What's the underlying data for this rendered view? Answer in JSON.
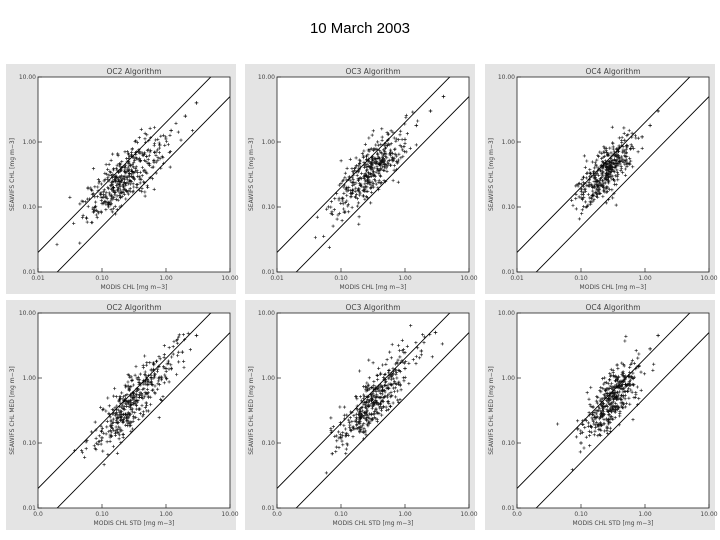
{
  "page": {
    "title": "10 March 2003"
  },
  "chart_data": [
    {
      "type": "scatter",
      "title": "OC2 Algorithm",
      "xlabel": "MODIS CHL [mg m−3]",
      "ylabel": "SEAWIFS CHL [mg m−3]",
      "xscale": "log",
      "yscale": "log",
      "xlim": [
        0.01,
        10.0
      ],
      "ylim": [
        0.01,
        10.0
      ],
      "xticks": [
        "0.01",
        "0.10",
        "1.00",
        "10.00"
      ],
      "yticks": [
        "0.01",
        "0.10",
        "1.00",
        "10.00"
      ],
      "reference_lines": [
        {
          "kind": "factor",
          "factor": 0.5
        },
        {
          "kind": "factor",
          "factor": 2
        }
      ],
      "cloud": {
        "center_log_x": -0.65,
        "center_log_y": -0.55,
        "slope": 1.05,
        "spread_along": 0.42,
        "spread_across": 0.15
      },
      "points_estimated": [
        [
          0.15,
          0.2
        ],
        [
          0.2,
          0.25
        ],
        [
          0.3,
          0.35
        ],
        [
          0.5,
          0.6
        ],
        [
          0.8,
          0.9
        ],
        [
          1.2,
          1.5
        ],
        [
          2.0,
          2.5
        ],
        [
          3.0,
          4.0
        ]
      ],
      "grid": false
    },
    {
      "type": "scatter",
      "title": "OC3 Algorithm",
      "xlabel": "MODIS CHL [mg m−3]",
      "ylabel": "SEAWIFS CHL [mg m−3]",
      "xscale": "log",
      "yscale": "log",
      "xlim": [
        0.01,
        10.0
      ],
      "ylim": [
        0.01,
        10.0
      ],
      "xticks": [
        "0.01",
        "0.10",
        "1.00",
        "10.00"
      ],
      "yticks": [
        "0.01",
        "0.10",
        "1.00",
        "10.00"
      ],
      "reference_lines": [
        {
          "kind": "factor",
          "factor": 0.5
        },
        {
          "kind": "factor",
          "factor": 2
        }
      ],
      "cloud": {
        "center_log_x": -0.55,
        "center_log_y": -0.45,
        "slope": 1.1,
        "spread_along": 0.4,
        "spread_across": 0.14
      },
      "points_estimated": [
        [
          0.15,
          0.18
        ],
        [
          0.25,
          0.3
        ],
        [
          0.4,
          0.45
        ],
        [
          0.6,
          0.7
        ],
        [
          1.0,
          1.1
        ],
        [
          1.5,
          1.8
        ],
        [
          2.5,
          3.0
        ],
        [
          4.0,
          5.0
        ]
      ],
      "grid": false
    },
    {
      "type": "scatter",
      "title": "OC4 Algorithm",
      "xlabel": "MODIS CHL [mg m−3]",
      "ylabel": "SEAWIFS CHL [mg m−3]",
      "xscale": "log",
      "yscale": "log",
      "xlim": [
        0.01,
        10.0
      ],
      "ylim": [
        0.01,
        10.0
      ],
      "xticks": [
        "0.01",
        "0.10",
        "1.00",
        "10.00"
      ],
      "yticks": [
        "0.01",
        "0.10",
        "1.00",
        "10.00"
      ],
      "reference_lines": [
        {
          "kind": "factor",
          "factor": 0.5
        },
        {
          "kind": "factor",
          "factor": 2
        }
      ],
      "cloud": {
        "center_log_x": -0.6,
        "center_log_y": -0.45,
        "slope": 1.35,
        "spread_along": 0.32,
        "spread_across": 0.13
      },
      "points_estimated": [
        [
          0.15,
          0.15
        ],
        [
          0.25,
          0.3
        ],
        [
          0.4,
          0.5
        ],
        [
          0.6,
          0.8
        ],
        [
          0.9,
          1.2
        ],
        [
          1.2,
          1.8
        ],
        [
          1.6,
          3.0
        ]
      ],
      "grid": false
    },
    {
      "type": "scatter",
      "title": "OC2 Algorithm",
      "xlabel": "MODIS CHL STD [mg m−3]",
      "ylabel": "SEAWIFS CHL MED [mg m−3]",
      "xscale": "log",
      "yscale": "log",
      "xlim": [
        0.01,
        10.0
      ],
      "ylim": [
        0.01,
        10.0
      ],
      "xticks": [
        "0.0",
        "0.10",
        "1.00",
        "10.00"
      ],
      "yticks": [
        "0.01",
        "0.10",
        "1.00",
        "10.00"
      ],
      "reference_lines": [
        {
          "kind": "factor",
          "factor": 0.5
        },
        {
          "kind": "factor",
          "factor": 2
        }
      ],
      "cloud": {
        "center_log_x": -0.5,
        "center_log_y": -0.35,
        "slope": 1.2,
        "spread_along": 0.48,
        "spread_across": 0.14
      },
      "points_estimated": [
        [
          0.1,
          0.12
        ],
        [
          0.2,
          0.25
        ],
        [
          0.35,
          0.45
        ],
        [
          0.6,
          0.8
        ],
        [
          1.0,
          1.4
        ],
        [
          1.8,
          2.5
        ],
        [
          3.0,
          4.5
        ]
      ],
      "grid": false
    },
    {
      "type": "scatter",
      "title": "OC3 Algorithm",
      "xlabel": "MODIS CHL STD [mg m−3]",
      "ylabel": "SEAWIFS CHL MED [mg m−3]",
      "xscale": "log",
      "yscale": "log",
      "xlim": [
        0.01,
        10.0
      ],
      "ylim": [
        0.01,
        10.0
      ],
      "xticks": [
        "0.0",
        "0.10",
        "1.00",
        "10.00"
      ],
      "yticks": [
        "0.01",
        "0.10",
        "1.00",
        "10.00"
      ],
      "reference_lines": [
        {
          "kind": "factor",
          "factor": 0.5
        },
        {
          "kind": "factor",
          "factor": 2
        }
      ],
      "cloud": {
        "center_log_x": -0.5,
        "center_log_y": -0.35,
        "slope": 1.25,
        "spread_along": 0.46,
        "spread_across": 0.14
      },
      "points_estimated": [
        [
          0.1,
          0.12
        ],
        [
          0.2,
          0.25
        ],
        [
          0.35,
          0.45
        ],
        [
          0.6,
          0.8
        ],
        [
          1.0,
          1.4
        ],
        [
          1.8,
          2.6
        ],
        [
          3.0,
          5.0
        ]
      ],
      "grid": false
    },
    {
      "type": "scatter",
      "title": "OC4 Algorithm",
      "xlabel": "MODIS CHL STD [mg m−3]",
      "ylabel": "SEAWIFS CHL MED [mg m−3]",
      "xscale": "log",
      "yscale": "log",
      "xlim": [
        0.01,
        10.0
      ],
      "ylim": [
        0.01,
        10.0
      ],
      "xticks": [
        "0.0",
        "0.10",
        "1.00",
        "10.00"
      ],
      "yticks": [
        "0.01",
        "0.10",
        "1.00",
        "10.00"
      ],
      "reference_lines": [
        {
          "kind": "factor",
          "factor": 0.5
        },
        {
          "kind": "factor",
          "factor": 2
        }
      ],
      "cloud": {
        "center_log_x": -0.55,
        "center_log_y": -0.35,
        "slope": 1.45,
        "spread_along": 0.34,
        "spread_across": 0.13
      },
      "points_estimated": [
        [
          0.1,
          0.1
        ],
        [
          0.2,
          0.25
        ],
        [
          0.35,
          0.5
        ],
        [
          0.5,
          0.8
        ],
        [
          0.8,
          1.5
        ],
        [
          1.2,
          2.8
        ],
        [
          1.6,
          4.5
        ]
      ],
      "grid": false
    }
  ]
}
